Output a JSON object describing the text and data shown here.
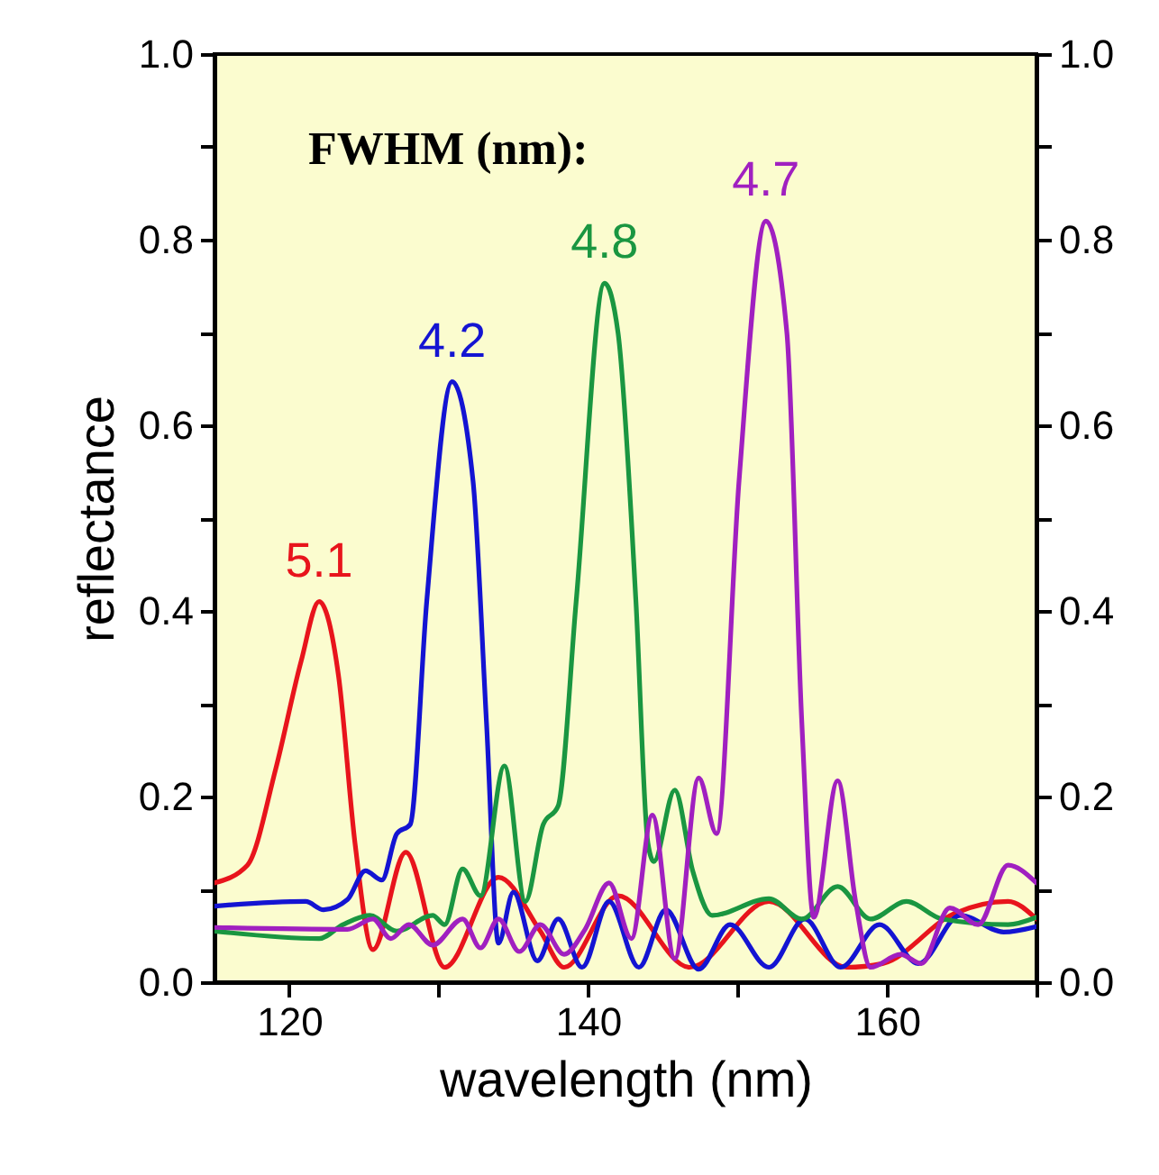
{
  "chart_data": {
    "type": "line",
    "xlabel": "wavelength (nm)",
    "ylabel": "reflectance",
    "xlim": [
      115,
      170
    ],
    "xticks": [
      120,
      {
        "value": 130,
        "label": null
      },
      140,
      {
        "value": 150,
        "label": null
      },
      160,
      {
        "value": 170,
        "label": null
      }
    ],
    "ylim": [
      0,
      1
    ],
    "yticks": [
      {
        "value": 0,
        "label": "0.0"
      },
      {
        "value": 0.1,
        "label": null
      },
      0.2,
      {
        "value": 0.3,
        "label": null
      },
      0.4,
      {
        "value": 0.5,
        "label": null
      },
      0.6,
      {
        "value": 0.7,
        "label": null
      },
      0.8,
      {
        "value": 0.9,
        "label": null
      },
      {
        "value": 1,
        "label": "1.0"
      }
    ],
    "y2lim": [
      0,
      1
    ],
    "y2ticks": [
      {
        "value": 0,
        "label": "0.0"
      },
      {
        "value": 0.1,
        "label": null
      },
      0.2,
      {
        "value": 0.3,
        "label": null
      },
      0.4,
      {
        "value": 0.5,
        "label": null
      },
      0.6,
      {
        "value": 0.7,
        "label": null
      },
      0.8,
      {
        "value": 0.9,
        "label": null
      },
      {
        "value": 1,
        "label": "1.0"
      }
    ],
    "grid": false,
    "marker": "none",
    "line_style": "solid",
    "annotations": [
      "FWHM (nm):",
      {
        "text": "5.1",
        "x": 122.0,
        "y": 0.41
      },
      {
        "text": "4.2",
        "x": 130.9,
        "y": 0.647
      },
      {
        "text": "4.8",
        "x": 141.1,
        "y": 0.753
      },
      {
        "text": "4.7",
        "x": 151.9,
        "y": 0.82
      }
    ],
    "series": [
      {
        "color": "#e8141c",
        "x": [
          115,
          117.2,
          119.1,
          120.8,
          122.0,
          123.3,
          124.4,
          125.6,
          127.8,
          130.4,
          134.0,
          136.8,
          138.4,
          142.0,
          146.8,
          152.1,
          157.3,
          159.7,
          164.5,
          168.1,
          170
        ],
        "values": [
          0.107,
          0.126,
          0.23,
          0.346,
          0.41,
          0.33,
          0.15,
          0.035,
          0.14,
          0.016,
          0.113,
          0.055,
          0.016,
          0.093,
          0.016,
          0.087,
          0.016,
          0.02,
          0.074,
          0.087,
          0.068
        ]
      },
      {
        "color": "#1414d2",
        "x": [
          115,
          121.1,
          122.3,
          123.9,
          125.1,
          126.2,
          127.2,
          128.1,
          129.2,
          130.9,
          132.3,
          133.2,
          134.0,
          135.0,
          136.6,
          138.0,
          139.6,
          141.4,
          143.4,
          145.2,
          147.4,
          149.5,
          152.1,
          154.5,
          156.9,
          159.5,
          162.1,
          164.9,
          167.8,
          170
        ],
        "values": [
          0.082,
          0.087,
          0.078,
          0.089,
          0.12,
          0.11,
          0.16,
          0.17,
          0.41,
          0.647,
          0.54,
          0.28,
          0.042,
          0.097,
          0.023,
          0.068,
          0.016,
          0.087,
          0.016,
          0.078,
          0.014,
          0.062,
          0.016,
          0.068,
          0.016,
          0.062,
          0.02,
          0.072,
          0.054,
          0.06
        ]
      },
      {
        "color": "#1a9641",
        "x": [
          115,
          122,
          123.6,
          125.4,
          127.2,
          129.6,
          130.4,
          131.6,
          132.8,
          134.4,
          135.8,
          137.0,
          138.0,
          139.2,
          141.1,
          142.0,
          143.2,
          144.0,
          144.4,
          145.8,
          147.0,
          148.3,
          152.1,
          154.3,
          156.7,
          158.9,
          161.3,
          163.7,
          168.1,
          170
        ],
        "values": [
          0.055,
          0.047,
          0.062,
          0.072,
          0.055,
          0.072,
          0.062,
          0.122,
          0.093,
          0.233,
          0.087,
          0.17,
          0.19,
          0.41,
          0.753,
          0.7,
          0.41,
          0.15,
          0.13,
          0.207,
          0.12,
          0.072,
          0.09,
          0.068,
          0.103,
          0.068,
          0.087,
          0.068,
          0.062,
          0.07
        ]
      },
      {
        "color": "#a020c0",
        "x": [
          115,
          123.9,
          125.6,
          126.8,
          128.0,
          129.6,
          131.6,
          132.8,
          134.0,
          135.4,
          136.8,
          138.4,
          139.8,
          141.4,
          142.9,
          144.3,
          145.8,
          147.4,
          148.6,
          150.1,
          151.9,
          153.3,
          154.3,
          155.1,
          156.7,
          157.9,
          158.9,
          160.9,
          162.3,
          164.2,
          166.1,
          168.1,
          170
        ],
        "values": [
          0.059,
          0.057,
          0.068,
          0.047,
          0.062,
          0.04,
          0.068,
          0.037,
          0.068,
          0.033,
          0.062,
          0.03,
          0.057,
          0.107,
          0.047,
          0.18,
          0.025,
          0.22,
          0.16,
          0.54,
          0.82,
          0.7,
          0.28,
          0.07,
          0.217,
          0.087,
          0.016,
          0.03,
          0.02,
          0.08,
          0.062,
          0.126,
          0.107
        ]
      }
    ]
  }
}
